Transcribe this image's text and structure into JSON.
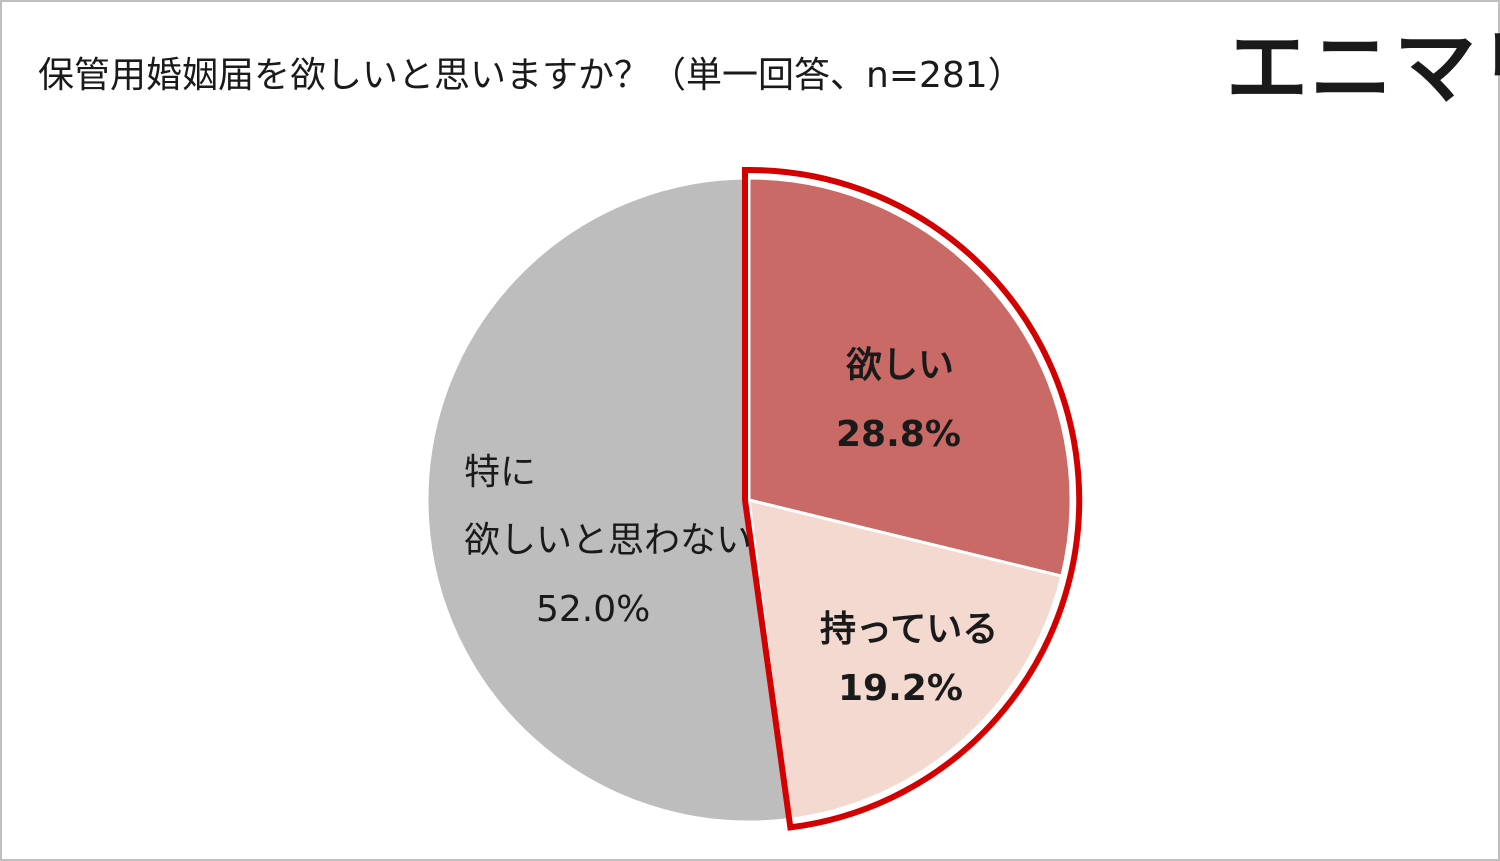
{
  "title": "保管用婚姻届を欲しいと思いますか？（単一回答、n=281）",
  "logo": "エニマリ",
  "colors": {
    "want": "#c96a66",
    "have": "#f3d9cf",
    "none": "#bdbdbd",
    "highlight": "#d40000",
    "border": "#bfbfbf"
  },
  "chart_data": {
    "type": "pie",
    "title": "保管用婚姻届を欲しいと思いますか？（単一回答、n=281）",
    "start": "12 o'clock, clockwise",
    "slices": [
      {
        "key": "want",
        "label": "欲しい",
        "value": 28.8,
        "value_label": "28.8%"
      },
      {
        "key": "have",
        "label": "持っている",
        "value": 19.2,
        "value_label": "19.2%"
      },
      {
        "key": "none",
        "label_line1": "特に",
        "label_line2": "欲しいと思わない",
        "value": 52.0,
        "value_label": "52.0%"
      }
    ],
    "highlighted_slices": [
      "want",
      "have"
    ]
  }
}
